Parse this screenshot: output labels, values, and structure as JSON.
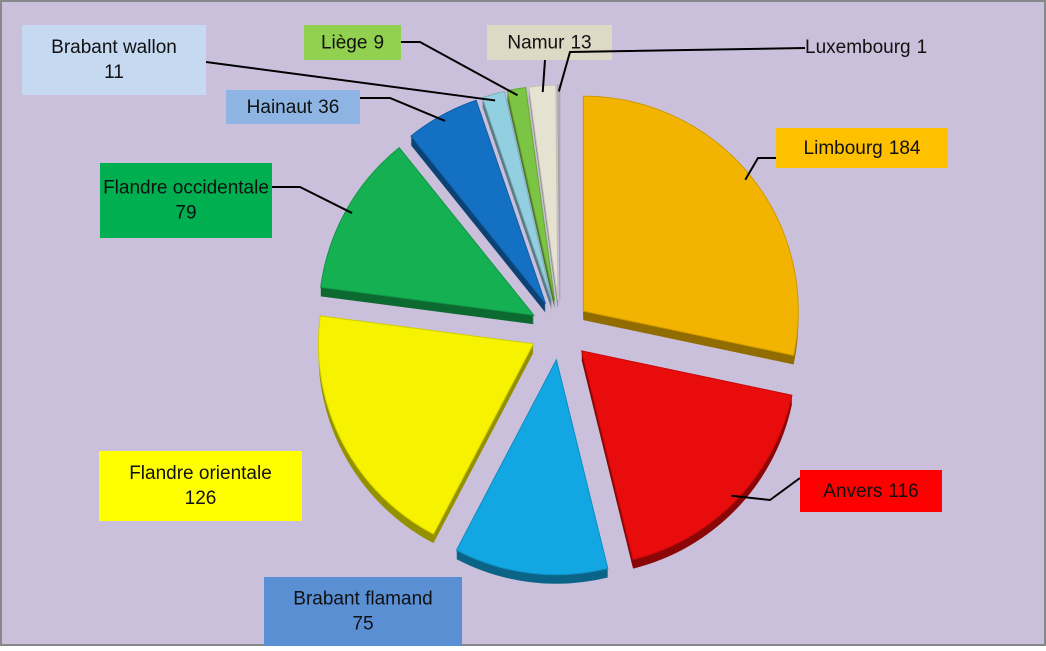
{
  "chart_data": {
    "type": "pie",
    "categories": [
      "Limbourg",
      "Anvers",
      "Brabant flamand",
      "Flandre orientale",
      "Flandre occidentale",
      "Hainaut",
      "Brabant wallon",
      "Liège",
      "Namur",
      "Luxembourg"
    ],
    "values": [
      184,
      116,
      75,
      126,
      79,
      36,
      11,
      9,
      13,
      1
    ],
    "colors": [
      "#f2b400",
      "#e80c0c",
      "#12a6e2",
      "#f6f200",
      "#14b052",
      "#1470c2",
      "#92cfe0",
      "#7cc444",
      "#e6e2d2",
      "#bdbdbd"
    ],
    "label_colors": [
      "#ffc000",
      "#ff0000",
      "#5b8fd4",
      "#ffff00",
      "#00b050",
      "#8db4e2",
      "#c5d9f1",
      "#92d050",
      "#ddd9c4",
      null
    ]
  }
}
